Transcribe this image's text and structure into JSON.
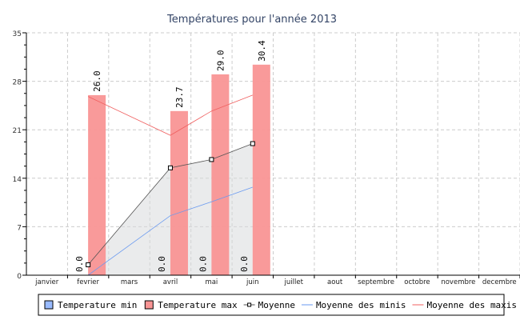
{
  "chart_data": {
    "type": "bar",
    "title": "Températures pour l'année 2013",
    "categories": [
      "janvier",
      "fevrier",
      "mars",
      "avril",
      "mai",
      "juin",
      "juillet",
      "aout",
      "septembre",
      "octobre",
      "novembre",
      "decembre"
    ],
    "ylim": [
      0,
      35
    ],
    "yticks": [
      0,
      7,
      14,
      21,
      28,
      35
    ],
    "series": [
      {
        "name": "Temperature min",
        "type": "bar",
        "color": "#99bbff",
        "values": [
          null,
          0.0,
          null,
          0.0,
          0.0,
          0.0,
          null,
          null,
          null,
          null,
          null,
          null
        ],
        "labels": [
          "",
          "0.0",
          "",
          "0.0",
          "0.0",
          "0.0",
          "",
          "",
          "",
          "",
          "",
          ""
        ]
      },
      {
        "name": "Temperature max",
        "type": "bar",
        "color": "#f99595",
        "values": [
          null,
          26.0,
          null,
          23.7,
          29.0,
          30.4,
          null,
          null,
          null,
          null,
          null,
          null
        ],
        "labels": [
          "",
          "26.0",
          "",
          "23.7",
          "29.0",
          "30.4",
          "",
          "",
          "",
          "",
          "",
          ""
        ]
      },
      {
        "name": "Moyenne",
        "type": "area-line",
        "color": "#555555",
        "values": [
          null,
          1.5,
          null,
          15.5,
          16.7,
          19.0,
          null,
          null,
          null,
          null,
          null,
          null
        ]
      },
      {
        "name": "Moyenne des minis",
        "type": "line",
        "color": "#6a9af0",
        "values": [
          null,
          0,
          null,
          8.6,
          10.6,
          12.7,
          null,
          null,
          null,
          null,
          null,
          null
        ]
      },
      {
        "name": "Moyenne des maxis",
        "type": "line",
        "color": "#f06060",
        "values": [
          null,
          25.8,
          null,
          20.2,
          23.7,
          26.0,
          null,
          null,
          null,
          null,
          null,
          null
        ]
      }
    ],
    "grid": true,
    "legend": "bottom"
  }
}
